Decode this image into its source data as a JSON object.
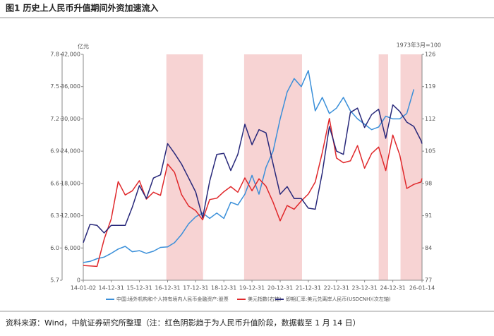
{
  "chart_data": {
    "type": "line",
    "title": "图1  历史上人民币升值期间外资加速流入",
    "source": "资料来源：Wind，中航证券研究所整理（注：红色阴影趋于为人民币升值阶段，数据截至 1 月 14 日）",
    "y_unit": "亿元",
    "y2_unit": "1973年3月=100",
    "x": [
      "2014-01-02",
      "2014-03-31",
      "2014-06-30",
      "2014-09-30",
      "2014-12-31",
      "2015-03-31",
      "2015-06-30",
      "2015-09-30",
      "2015-12-31",
      "2016-03-31",
      "2016-06-30",
      "2016-09-30",
      "2016-12-31",
      "2017-03-31",
      "2017-06-30",
      "2017-09-30",
      "2017-12-31",
      "2018-03-31",
      "2018-06-30",
      "2018-09-30",
      "2018-12-31",
      "2019-03-31",
      "2019-06-30",
      "2019-09-30",
      "2019-12-31",
      "2020-03-31",
      "2020-06-30",
      "2020-09-30",
      "2020-12-31",
      "2021-03-31",
      "2021-06-30",
      "2021-09-30",
      "2021-12-31",
      "2022-03-31",
      "2022-06-30",
      "2022-09-30",
      "2022-12-31",
      "2023-03-31",
      "2023-06-30",
      "2023-09-30",
      "2023-12-31",
      "2024-03-31",
      "2024-06-30",
      "2024-09-30",
      "2024-12-31",
      "2025-03-31",
      "2025-06-30",
      "2025-09-30",
      "2025-12-31",
      "2026-01-14"
    ],
    "xlim": [
      "2014-01-02",
      "2026-01-14"
    ],
    "xticks": [
      {
        "value": "2014-01-02",
        "label": "14-01-02"
      },
      {
        "value": "2014-12-31",
        "label": "14-12-31"
      },
      {
        "value": "2015-12-31",
        "label": "15-12-31"
      },
      {
        "value": "2016-12-31",
        "label": "16-12-31"
      },
      {
        "value": "2017-12-31",
        "label": "17-12-31"
      },
      {
        "value": "2018-12-31",
        "label": "18-12-31"
      },
      {
        "value": "2019-12-31",
        "label": "19-12-31"
      },
      {
        "value": "2020-12-31",
        "label": "20-12-31"
      },
      {
        "value": "2021-12-31",
        "label": "21-12-31"
      },
      {
        "value": "2022-12-31",
        "label": "22-12-31"
      },
      {
        "value": "2023-12-31",
        "label": "23-12-31"
      },
      {
        "value": "2024-12-31",
        "label": "24-12-31"
      },
      {
        "value": "2026-01-14",
        "label": "26-01-14"
      }
    ],
    "ylim": [
      0,
      42000
    ],
    "yticks": [
      0,
      {
        "value": 6000,
        "label": "6,000"
      },
      {
        "value": 12000,
        "label": "12,000"
      },
      {
        "value": 18000,
        "label": "18,000"
      },
      {
        "value": 24000,
        "label": "24,000"
      },
      {
        "value": 30000,
        "label": "30,000"
      },
      {
        "value": 36000,
        "label": "36,000"
      },
      {
        "value": 42000,
        "label": "42,000"
      }
    ],
    "y2lim": [
      77,
      126
    ],
    "y2ticks": [
      77,
      84,
      91,
      98,
      105,
      112,
      119,
      126
    ],
    "y3lim": [
      5.7,
      7.8
    ],
    "y3ticks": [
      5.7,
      {
        "value": 6,
        "label": "6.0"
      },
      6.3,
      6.6,
      6.9,
      7.2,
      7.5,
      7.8
    ],
    "shade_color": "#f7d3d3",
    "shades": [
      {
        "start": "2016-12-15",
        "end": "2018-04-05"
      },
      {
        "start": "2019-09-20",
        "end": "2021-10-10"
      },
      {
        "start": "2024-07-01",
        "end": "2024-10-31"
      },
      {
        "start": "2025-04-10",
        "end": "2026-01-14"
      }
    ],
    "series": [
      {
        "name": "中国:境外机构和个人持有境内人民币金融资产:股票",
        "color": "#3a8fd9",
        "axis": "y",
        "values": [
          3300,
          3500,
          4000,
          4300,
          5000,
          5800,
          6300,
          5300,
          5500,
          5000,
          5400,
          6100,
          6200,
          7000,
          8500,
          10500,
          11800,
          12500,
          11500,
          12500,
          11500,
          14500,
          14000,
          16000,
          19500,
          16000,
          21000,
          24000,
          30000,
          35000,
          37500,
          36000,
          39000,
          31500,
          34000,
          31000,
          32000,
          34000,
          31500,
          30000,
          29000,
          28000,
          28500,
          30500,
          30000,
          30000,
          31000,
          35500,
          null,
          null
        ]
      },
      {
        "name": "美元指数(右轴)",
        "color": "#e0282b",
        "axis": "y2",
        "values": [
          80.2,
          80.1,
          80.0,
          85.9,
          90.3,
          98.4,
          95.5,
          96.4,
          98.6,
          94.6,
          96.1,
          95.4,
          102.2,
          100.4,
          95.6,
          93.1,
          92.1,
          90.1,
          94.5,
          94.8,
          96.2,
          97.3,
          96.1,
          99.2,
          96.4,
          99.0,
          97.4,
          93.9,
          89.9,
          93.2,
          92.4,
          94.2,
          95.7,
          98.3,
          104.7,
          112.1,
          103.5,
          102.5,
          102.9,
          106.2,
          101.3,
          104.5,
          105.9,
          100.8,
          108.5,
          104.2,
          96.9,
          97.8,
          98.3,
          99.1
        ]
      },
      {
        "name": "即期汇率:美元兑离岸人民币(USDCNH)(次左轴)",
        "color": "#28287a",
        "axis": "y3",
        "values": [
          6.05,
          6.22,
          6.21,
          6.14,
          6.21,
          6.21,
          6.21,
          6.38,
          6.58,
          6.46,
          6.65,
          6.68,
          6.97,
          6.88,
          6.78,
          6.65,
          6.52,
          6.28,
          6.62,
          6.87,
          6.88,
          6.72,
          6.87,
          7.15,
          6.96,
          7.1,
          7.07,
          6.78,
          6.5,
          6.57,
          6.46,
          6.46,
          6.37,
          6.36,
          6.7,
          7.13,
          6.9,
          6.87,
          7.26,
          7.3,
          7.12,
          7.24,
          7.29,
          7.02,
          7.33,
          7.27,
          7.17,
          7.13,
          7.0,
          6.97
        ]
      }
    ]
  }
}
